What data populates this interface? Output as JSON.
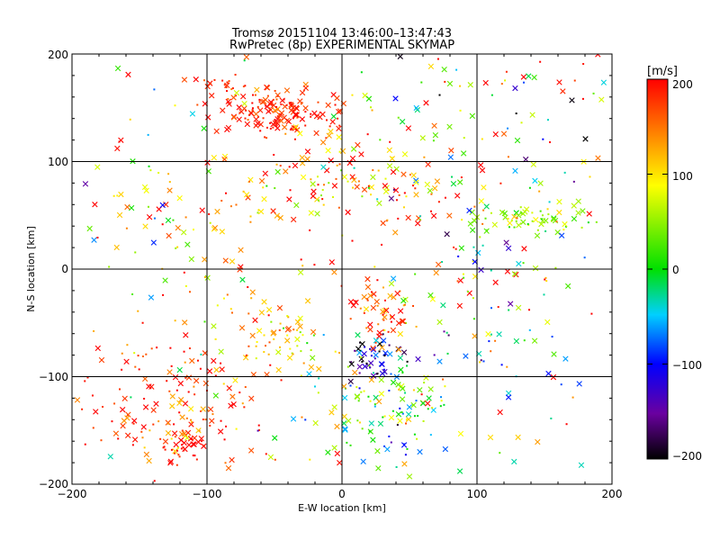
{
  "chart_data": {
    "type": "scatter",
    "title": "Tromsø 20151104 13:46:00–13:47:43",
    "subtitle": "RwPretec (8p) EXPERIMENTAL SKYMAP",
    "xlabel": "E-W location [km]",
    "ylabel": "N-S location [km]",
    "xlim": [
      -200,
      200
    ],
    "ylim": [
      -200,
      200
    ],
    "xticks": [
      "−200",
      "−100",
      "0",
      "100",
      "200"
    ],
    "yticks": [
      "−200",
      "−100",
      "0",
      "100",
      "200"
    ],
    "grid": true,
    "marker_types": [
      "cross",
      "dot"
    ],
    "colorbar": {
      "label": "[m/s]",
      "range": [
        -200,
        200
      ],
      "ticks": [
        "200",
        "100",
        "0",
        "−100",
        "−200"
      ],
      "colormap": [
        "#000000",
        "#6a00a0",
        "#0000ff",
        "#00d0ff",
        "#00e000",
        "#ffff00",
        "#ff8000",
        "#ff0000"
      ]
    },
    "clusters": [
      {
        "cx": -45,
        "cy": 145,
        "sx": 22,
        "sy": 12,
        "n": 150,
        "v": 185,
        "vs": 20
      },
      {
        "cx": -85,
        "cy": 170,
        "sx": 15,
        "sy": 8,
        "n": 25,
        "v": 180,
        "vs": 20
      },
      {
        "cx": 0,
        "cy": 80,
        "sx": 35,
        "sy": 15,
        "n": 70,
        "v": 120,
        "vs": 60
      },
      {
        "cx": 140,
        "cy": 47,
        "sx": 25,
        "sy": 6,
        "n": 60,
        "v": 50,
        "vs": 30
      },
      {
        "cx": 30,
        "cy": -40,
        "sx": 10,
        "sy": 15,
        "n": 50,
        "v": 175,
        "vs": 40
      },
      {
        "cx": 25,
        "cy": -85,
        "sx": 12,
        "sy": 12,
        "n": 50,
        "v": -150,
        "vs": 50
      },
      {
        "cx": 35,
        "cy": -130,
        "sx": 25,
        "sy": 25,
        "n": 120,
        "v": 10,
        "vs": 70
      },
      {
        "cx": -120,
        "cy": -130,
        "sx": 40,
        "sy": 35,
        "n": 160,
        "v": 170,
        "vs": 40
      },
      {
        "cx": -115,
        "cy": -165,
        "sx": 8,
        "sy": 8,
        "n": 30,
        "v": 195,
        "vs": 10
      },
      {
        "cx": -50,
        "cy": -65,
        "sx": 25,
        "sy": 20,
        "n": 70,
        "v": 110,
        "vs": 40
      },
      {
        "cx": 100,
        "cy": 140,
        "sx": 60,
        "sy": 40,
        "n": 90,
        "v": 40,
        "vs": 130
      },
      {
        "cx": -140,
        "cy": 40,
        "sx": 40,
        "sy": 70,
        "n": 60,
        "v": 80,
        "vs": 100
      },
      {
        "cx": 100,
        "cy": -20,
        "sx": 50,
        "sy": 50,
        "n": 60,
        "v": 60,
        "vs": 100
      },
      {
        "cx": -60,
        "cy": 40,
        "sx": 40,
        "sy": 50,
        "n": 70,
        "v": 150,
        "vs": 60
      },
      {
        "cx": 70,
        "cy": 60,
        "sx": 40,
        "sy": 40,
        "n": 60,
        "v": 130,
        "vs": 80
      },
      {
        "cx": 120,
        "cy": -80,
        "sx": 50,
        "sy": 60,
        "n": 40,
        "v": 0,
        "vs": 100
      },
      {
        "cx": 0,
        "cy": 0,
        "sx": 200,
        "sy": 200,
        "n": 180,
        "v": 100,
        "vs": 150
      }
    ]
  }
}
